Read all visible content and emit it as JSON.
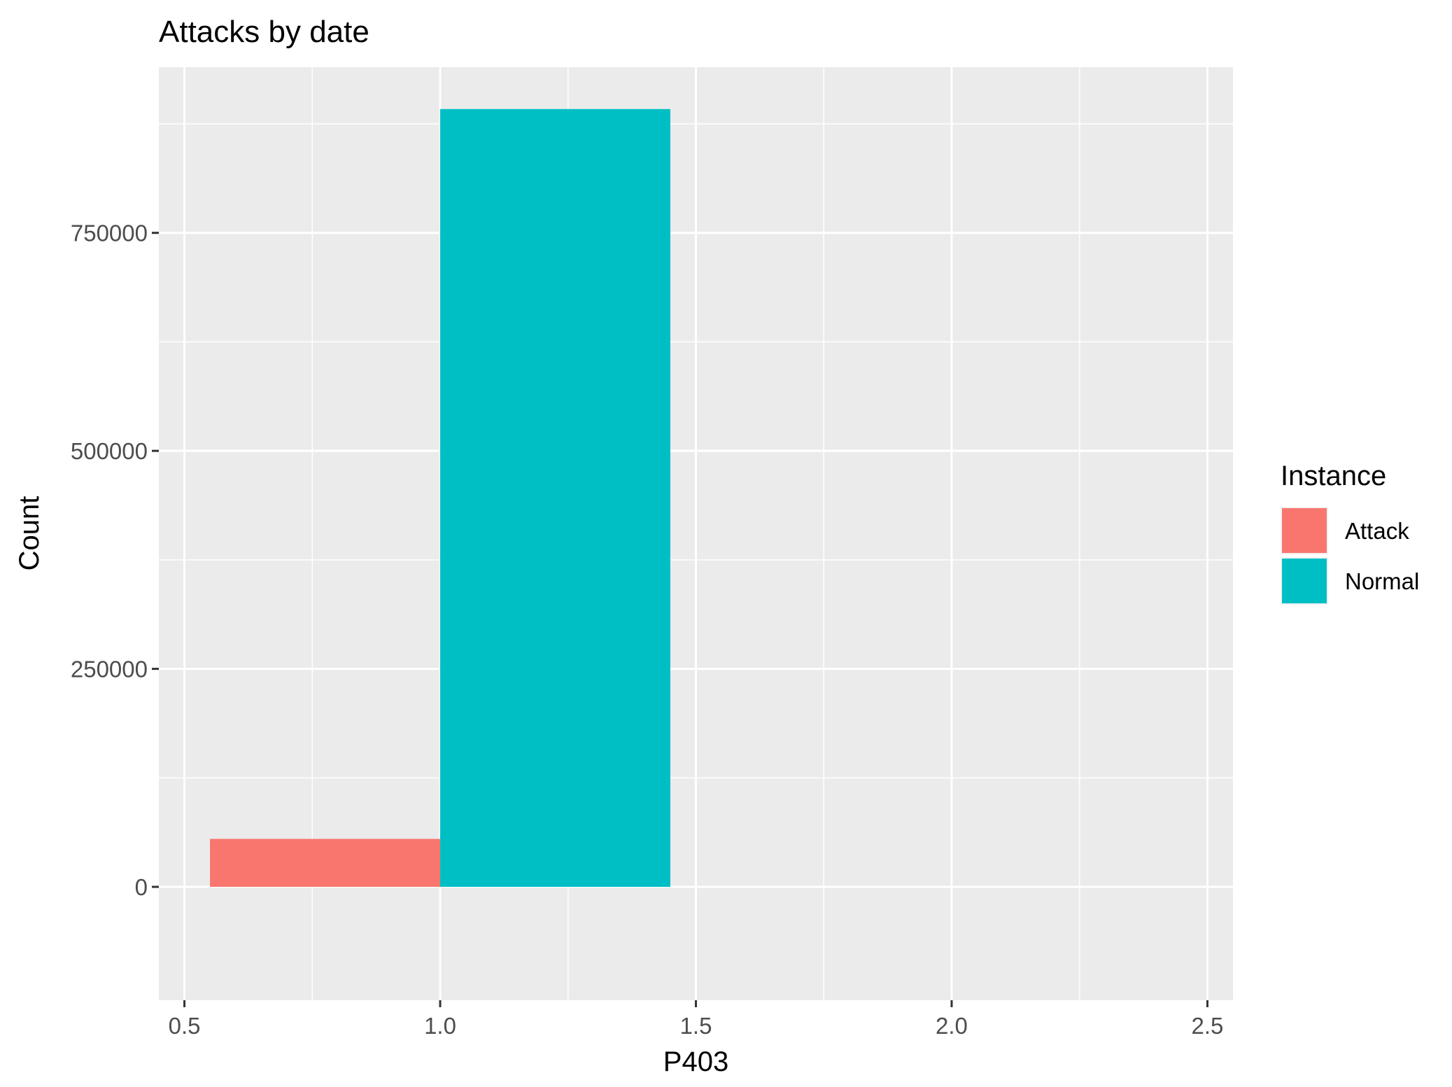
{
  "chart_data": {
    "type": "bar",
    "title": "Attacks by date",
    "xlabel": "P403",
    "ylabel": "Count",
    "xlim": [
      0.45,
      2.55
    ],
    "ylim": [
      -130000,
      940000
    ],
    "x_ticks": [
      0.5,
      1.0,
      1.5,
      2.0,
      2.5
    ],
    "x_tick_labels": [
      "0.5",
      "1.0",
      "1.5",
      "2.0",
      "2.5"
    ],
    "y_ticks": [
      0,
      250000,
      500000,
      750000
    ],
    "y_tick_labels": [
      "0",
      "250000",
      "500000",
      "750000"
    ],
    "grid": true,
    "legend": {
      "title": "Instance",
      "position": "right",
      "entries": [
        {
          "label": "Attack",
          "color": "#F8766D"
        },
        {
          "label": "Normal",
          "color": "#00BFC4"
        }
      ]
    },
    "series": [
      {
        "name": "Attack",
        "color": "#F8766D",
        "bars": [
          {
            "x0": 0.55,
            "x1": 1.0,
            "value": 55000
          }
        ]
      },
      {
        "name": "Normal",
        "color": "#00BFC4",
        "bars": [
          {
            "x0": 1.0,
            "x1": 1.45,
            "value": 892000
          }
        ]
      }
    ]
  }
}
